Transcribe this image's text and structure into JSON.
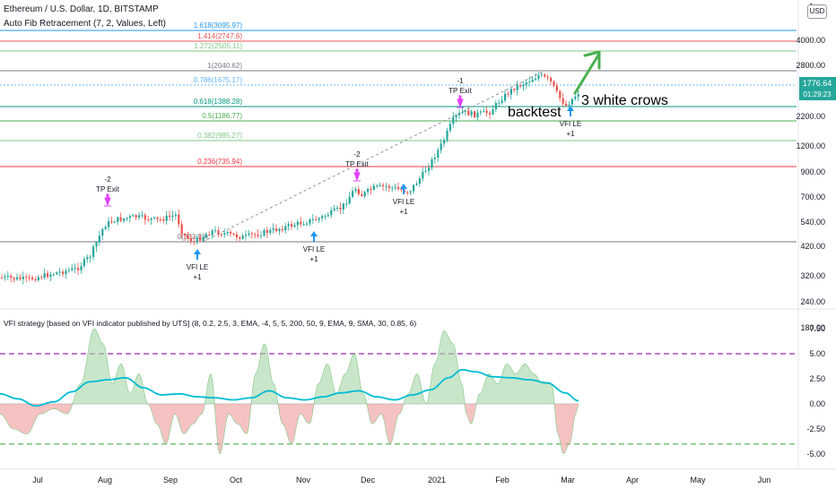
{
  "header": {
    "symbol_title": "Ethereum / U.S. Dollar, 1D, BITSTAMP",
    "indicator_title": "Auto Fib Retracement (7, 2, Values, Left)",
    "currency_badge": "USD"
  },
  "price_axis": {
    "ticks": [
      "4000.00",
      "2800.00",
      "2200.00",
      "1200.00",
      "900.00",
      "700.00",
      "540.00",
      "420.00",
      "320.00",
      "240.00",
      "180.00"
    ],
    "top_partial": "4",
    "last_price": "1776.64",
    "countdown": "01:29:23",
    "last_price_color": "#26a69a"
  },
  "fib_levels": [
    {
      "label": "1.618(3095.97)",
      "color": "#2196f3"
    },
    {
      "label": "1.414(2747.6)",
      "color": "#ef5350"
    },
    {
      "label": "1.272(2505.11)",
      "color": "#81c784"
    },
    {
      "label": "1(2040.62)",
      "color": "#787b86"
    },
    {
      "label": "0.786(1675.17)",
      "color": "#64b5f6"
    },
    {
      "label": "0.618(1388.28)",
      "color": "#089981"
    },
    {
      "label": "0.5(1186.77)",
      "color": "#4caf50"
    },
    {
      "label": "0.382(985.27)",
      "color": "#81c784"
    },
    {
      "label": "0.236(735.94)",
      "color": "#f23645"
    },
    {
      "label": "0(333.93)",
      "color": "#787b86"
    }
  ],
  "signals": [
    {
      "type": "exit",
      "line1": "-2",
      "line2": "TP Exit"
    },
    {
      "type": "entry",
      "line1": "VFI LE",
      "line2": "+1"
    },
    {
      "type": "entry",
      "line1": "VFI LE",
      "line2": "+1"
    },
    {
      "type": "exit",
      "line1": "-2",
      "line2": "TP Exit"
    },
    {
      "type": "entry",
      "line1": "VFI LE",
      "line2": "+1"
    },
    {
      "type": "exit",
      "line1": "-1",
      "line2": "TP Exit"
    },
    {
      "type": "entry",
      "line1": "VFI LE",
      "line2": "+1"
    }
  ],
  "annotations": {
    "backtest": "backtest",
    "crows": "3 white crows"
  },
  "vfi_panel": {
    "title": "VFI strategy [based on VFI indicator published by UTS] (8, 0.2, 2.5, 3, EMA, -4, 5, 5, 200, 50, 9, EMA, 9, SMA, 30, 0.85, 6)",
    "ticks": [
      "7.50",
      "5.00",
      "2.50",
      "0.00",
      "-2.50",
      "-5.00"
    ],
    "upper_threshold": 5,
    "lower_threshold": -4
  },
  "time_axis": [
    "Jul",
    "Aug",
    "Sep",
    "Oct",
    "Nov",
    "Dec",
    "2021",
    "Feb",
    "Mar",
    "Apr",
    "May",
    "Jun"
  ],
  "colors": {
    "up": "#26a69a",
    "down": "#ef5350",
    "pos_fill": "#a5d6a7",
    "neg_fill": "#ef9a9a",
    "signal_line": "#00bcd4",
    "entry_arrow": "#2196f3",
    "exit_arrow": "#e040fb",
    "threshold_upper": "#9c27b0",
    "threshold_lower": "#4caf50"
  }
}
